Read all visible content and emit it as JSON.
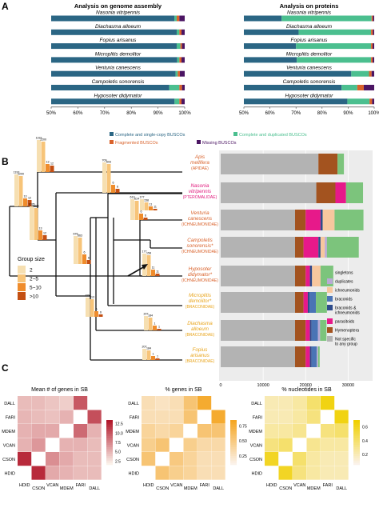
{
  "panel_labels": {
    "a": "A",
    "b": "B",
    "c": "C"
  },
  "colors": {
    "single": "#2b6684",
    "dup": "#4bbf8f",
    "frag": "#d9622b",
    "miss": "#4b1563",
    "gray": "#b3b3b3",
    "singletons": "#7cc47c",
    "duplicates": "#b9a9d6",
    "ichneumonids": "#f7c79e",
    "braconids": "#4a74b5",
    "brac_ichn": "#2e4b8a",
    "parasitoids": "#e7198a",
    "hymenoptera": "#a3531f",
    "heat_red": "#b2182b",
    "heat_orange": "#f5a623",
    "heat_yellow": "#f0d000",
    "label_orange": "#d9622b",
    "label_pink": "#e0197c",
    "label_gold": "#e8a41b"
  },
  "chart_data": [
    {
      "type": "bar",
      "title": "Analysis on genome assembly",
      "categories": [
        "Nasonia vitripennis",
        "Diachasma alloeum",
        "Fopius arisanus",
        "Microplitis demolitor",
        "Venturia canescens",
        "Campoletis sonorensis",
        "Hyposoter didymator"
      ],
      "series": [
        {
          "name": "Complete and single-copy BUSCOs",
          "values": [
            96.2,
            97.0,
            97.0,
            97.2,
            96.6,
            94.2,
            96.2
          ]
        },
        {
          "name": "Complete and duplicated BUSCOs",
          "values": [
            0.8,
            1.0,
            1.4,
            0.8,
            0.8,
            3.8,
            1.8
          ]
        },
        {
          "name": "Fragmented BUSCOs",
          "values": [
            1.0,
            0.8,
            0.6,
            0.8,
            0.8,
            1.0,
            0.8
          ]
        },
        {
          "name": "Missing BUSCOs",
          "values": [
            2.0,
            1.2,
            1.0,
            1.2,
            1.8,
            1.0,
            1.2
          ]
        }
      ],
      "xlim": [
        50,
        100
      ],
      "ticks": [
        "50%",
        "60%",
        "70%",
        "80%",
        "90%",
        "100%"
      ]
    },
    {
      "type": "bar",
      "title": "Analysis on proteins",
      "categories": [
        "Nasonia vitripennis",
        "Diachasma alloeum",
        "Fopius arisanus",
        "Microplitis demolitor",
        "Venturia canescens",
        "Campoletis sonorensis",
        "Hyposoter didymator"
      ],
      "series": [
        {
          "name": "Complete and single-copy BUSCOs",
          "values": [
            64.5,
            71.0,
            70.0,
            70.3,
            91.2,
            87.5,
            89.7
          ]
        },
        {
          "name": "Complete and duplicated BUSCOs",
          "values": [
            34.5,
            27.8,
            28.8,
            28.5,
            6.8,
            6.0,
            8.5
          ]
        },
        {
          "name": "Fragmented BUSCOs",
          "values": [
            0.5,
            0.7,
            0.6,
            0.6,
            1.0,
            2.5,
            1.0
          ]
        },
        {
          "name": "Missing BUSCOs",
          "values": [
            0.5,
            0.5,
            0.6,
            0.6,
            1.0,
            4.0,
            0.8
          ]
        }
      ],
      "xlim": [
        50,
        100
      ],
      "ticks": [
        "50%",
        "60%",
        "70%",
        "80%",
        "90%",
        "100%"
      ]
    },
    {
      "type": "bar",
      "stacked": true,
      "orientation": "horizontal",
      "categories": [
        "Apis mellifera",
        "Nasonia vitripennis",
        "Venturia canescens",
        "Campoletis sonorensis",
        "Hyposoter didymator",
        "Microplitis demolitor",
        "Diachasma alloeum",
        "Fopius arisanus"
      ],
      "series": [
        {
          "name": "Not specific to any group",
          "values": [
            23000,
            22500,
            17500,
            17500,
            17500,
            17500,
            17500,
            17500
          ]
        },
        {
          "name": "Hymenoptera",
          "values": [
            4500,
            4500,
            2500,
            2000,
            2500,
            2000,
            2500,
            2500
          ]
        },
        {
          "name": "parasitoids",
          "values": [
            0,
            2500,
            3500,
            3500,
            1000,
            1000,
            1000,
            1000
          ]
        },
        {
          "name": "braconids & ichneumonids",
          "values": [
            0,
            0,
            500,
            500,
            500,
            400,
            400,
            400
          ]
        },
        {
          "name": "braconids",
          "values": [
            0,
            0,
            0,
            0,
            0,
            1500,
            1500,
            1200
          ]
        },
        {
          "name": "ichneumonids",
          "values": [
            0,
            0,
            2800,
            1000,
            2000,
            0,
            0,
            0
          ]
        },
        {
          "name": "duplicates",
          "values": [
            0,
            0,
            0,
            500,
            0,
            0,
            500,
            300
          ]
        },
        {
          "name": "singletons",
          "values": [
            1500,
            4000,
            6800,
            7500,
            3000,
            2600,
            1500,
            400
          ]
        }
      ],
      "xlim": [
        0,
        35000
      ],
      "ticks": [
        "0",
        "10000",
        "20000",
        "30000"
      ],
      "taxon_labels": [
        {
          "name": "Apis",
          "name2": "mellifera",
          "family": "(APIDAE)"
        },
        {
          "name": "Nasonia",
          "name2": "vitripennis",
          "family": "(PTEROMALIDAE)"
        },
        {
          "name": "Venturia",
          "name2": "canescens",
          "family": "(ICHNEUMONIDAE)"
        },
        {
          "name": "Campoletis",
          "name2": "sonorensis*",
          "family": "(ICHNEUMONIDAE)"
        },
        {
          "name": "Hyposoter",
          "name2": "didymator*",
          "family": "(ICHNEUMONIDAE)"
        },
        {
          "name": "Microplitis",
          "name2": "demolitor*",
          "family": "(BRACONIDAE)"
        },
        {
          "name": "Diachasma",
          "name2": "alloeum",
          "family": "(BRACONIDAE)"
        },
        {
          "name": "Fopius",
          "name2": "arisanus",
          "family": "(BRACONIDAE)"
        }
      ],
      "legend": [
        "singletons",
        "duplicates",
        "ichneumonids",
        "braconids",
        "braconids & ichneumonids",
        "parasitoids",
        "Hymenoptera",
        "Not specific to any group"
      ],
      "legend_lines": [
        [
          "singletons"
        ],
        [
          "duplicates"
        ],
        [
          "ichneumonids"
        ],
        [
          "braconids"
        ],
        [
          "braconids &",
          "ichneumonids"
        ],
        [
          "parasitoids"
        ],
        [
          "Hymenoptera"
        ],
        [
          "Not specific",
          "to any group"
        ]
      ],
      "group_size_legend": {
        "title": "Group size",
        "labels": [
          "2",
          "2~5",
          "5~10",
          ">10"
        ]
      },
      "tree_numbers": [
        "1193",
        "1200",
        "13",
        "12",
        "1035",
        "1021",
        "709",
        "693",
        "6",
        "6",
        "676",
        "663",
        "613",
        "614",
        "177",
        "158",
        "11",
        "11",
        "1",
        "1",
        "329",
        "313",
        "207",
        "184"
      ]
    },
    {
      "type": "heatmap",
      "title": "Mean # of genes in SB",
      "rows": [
        "DALL",
        "FARI",
        "MDEM",
        "VCAN",
        "CSON",
        "HDID"
      ],
      "cols": [
        "HDID",
        "CSON",
        "VCAN",
        "MDEM",
        "FARI",
        "DALL"
      ],
      "values": [
        [
          4.5,
          4.5,
          4.0,
          3.5,
          10.0,
          null
        ],
        [
          4.8,
          4.5,
          4.2,
          5.0,
          null,
          10.5
        ],
        [
          5.0,
          5.5,
          5.5,
          null,
          9.0,
          5.0
        ],
        [
          5.0,
          6.5,
          null,
          5.0,
          5.0,
          4.5
        ],
        [
          12.5,
          null,
          7.0,
          5.5,
          4.5,
          4.5
        ],
        [
          null,
          12.5,
          5.5,
          5.0,
          4.5,
          4.5
        ]
      ],
      "colorbar_ticks": [
        "2.5",
        "5.0",
        "7.5",
        "10.0",
        "12.5"
      ],
      "colorbar_range": [
        1.5,
        13.5
      ]
    },
    {
      "type": "heatmap",
      "title": "% genes in SB",
      "rows": [
        "DALL",
        "FARI",
        "MDEM",
        "VCAN",
        "CSON",
        "HDID"
      ],
      "cols": [
        "HDID",
        "CSON",
        "VCAN",
        "MDEM",
        "FARI",
        "DALL"
      ],
      "values": [
        [
          0.3,
          0.25,
          0.3,
          0.55,
          0.8,
          null
        ],
        [
          0.3,
          0.3,
          0.3,
          0.55,
          null,
          0.8
        ],
        [
          0.4,
          0.35,
          0.4,
          null,
          0.55,
          0.55
        ],
        [
          0.45,
          0.55,
          null,
          0.45,
          0.35,
          0.35
        ],
        [
          0.55,
          null,
          0.5,
          0.4,
          0.3,
          0.3
        ],
        [
          null,
          0.55,
          0.45,
          0.4,
          0.3,
          0.3
        ]
      ],
      "colorbar_ticks": [
        "0.25",
        "0.50",
        "0.75"
      ],
      "colorbar_range": [
        0.1,
        0.85
      ]
    },
    {
      "type": "heatmap",
      "title": "% nucleotides in SB",
      "rows": [
        "DALL",
        "FARI",
        "MDEM",
        "VCAN",
        "CSON",
        "HDID"
      ],
      "cols": [
        "HDID",
        "CSON",
        "VCAN",
        "MDEM",
        "FARI",
        "DALL"
      ],
      "values": [
        [
          0.2,
          0.2,
          0.25,
          0.4,
          0.65,
          null
        ],
        [
          0.2,
          0.2,
          0.25,
          0.35,
          null,
          0.65
        ],
        [
          0.25,
          0.25,
          0.3,
          null,
          0.35,
          0.4
        ],
        [
          0.35,
          0.4,
          null,
          0.3,
          0.25,
          0.25
        ],
        [
          0.6,
          null,
          0.4,
          0.25,
          0.2,
          0.2
        ],
        [
          null,
          0.6,
          0.35,
          0.25,
          0.2,
          0.2
        ]
      ],
      "colorbar_ticks": [
        "0.2",
        "0.4",
        "0.6"
      ],
      "colorbar_range": [
        0.05,
        0.7
      ]
    }
  ]
}
